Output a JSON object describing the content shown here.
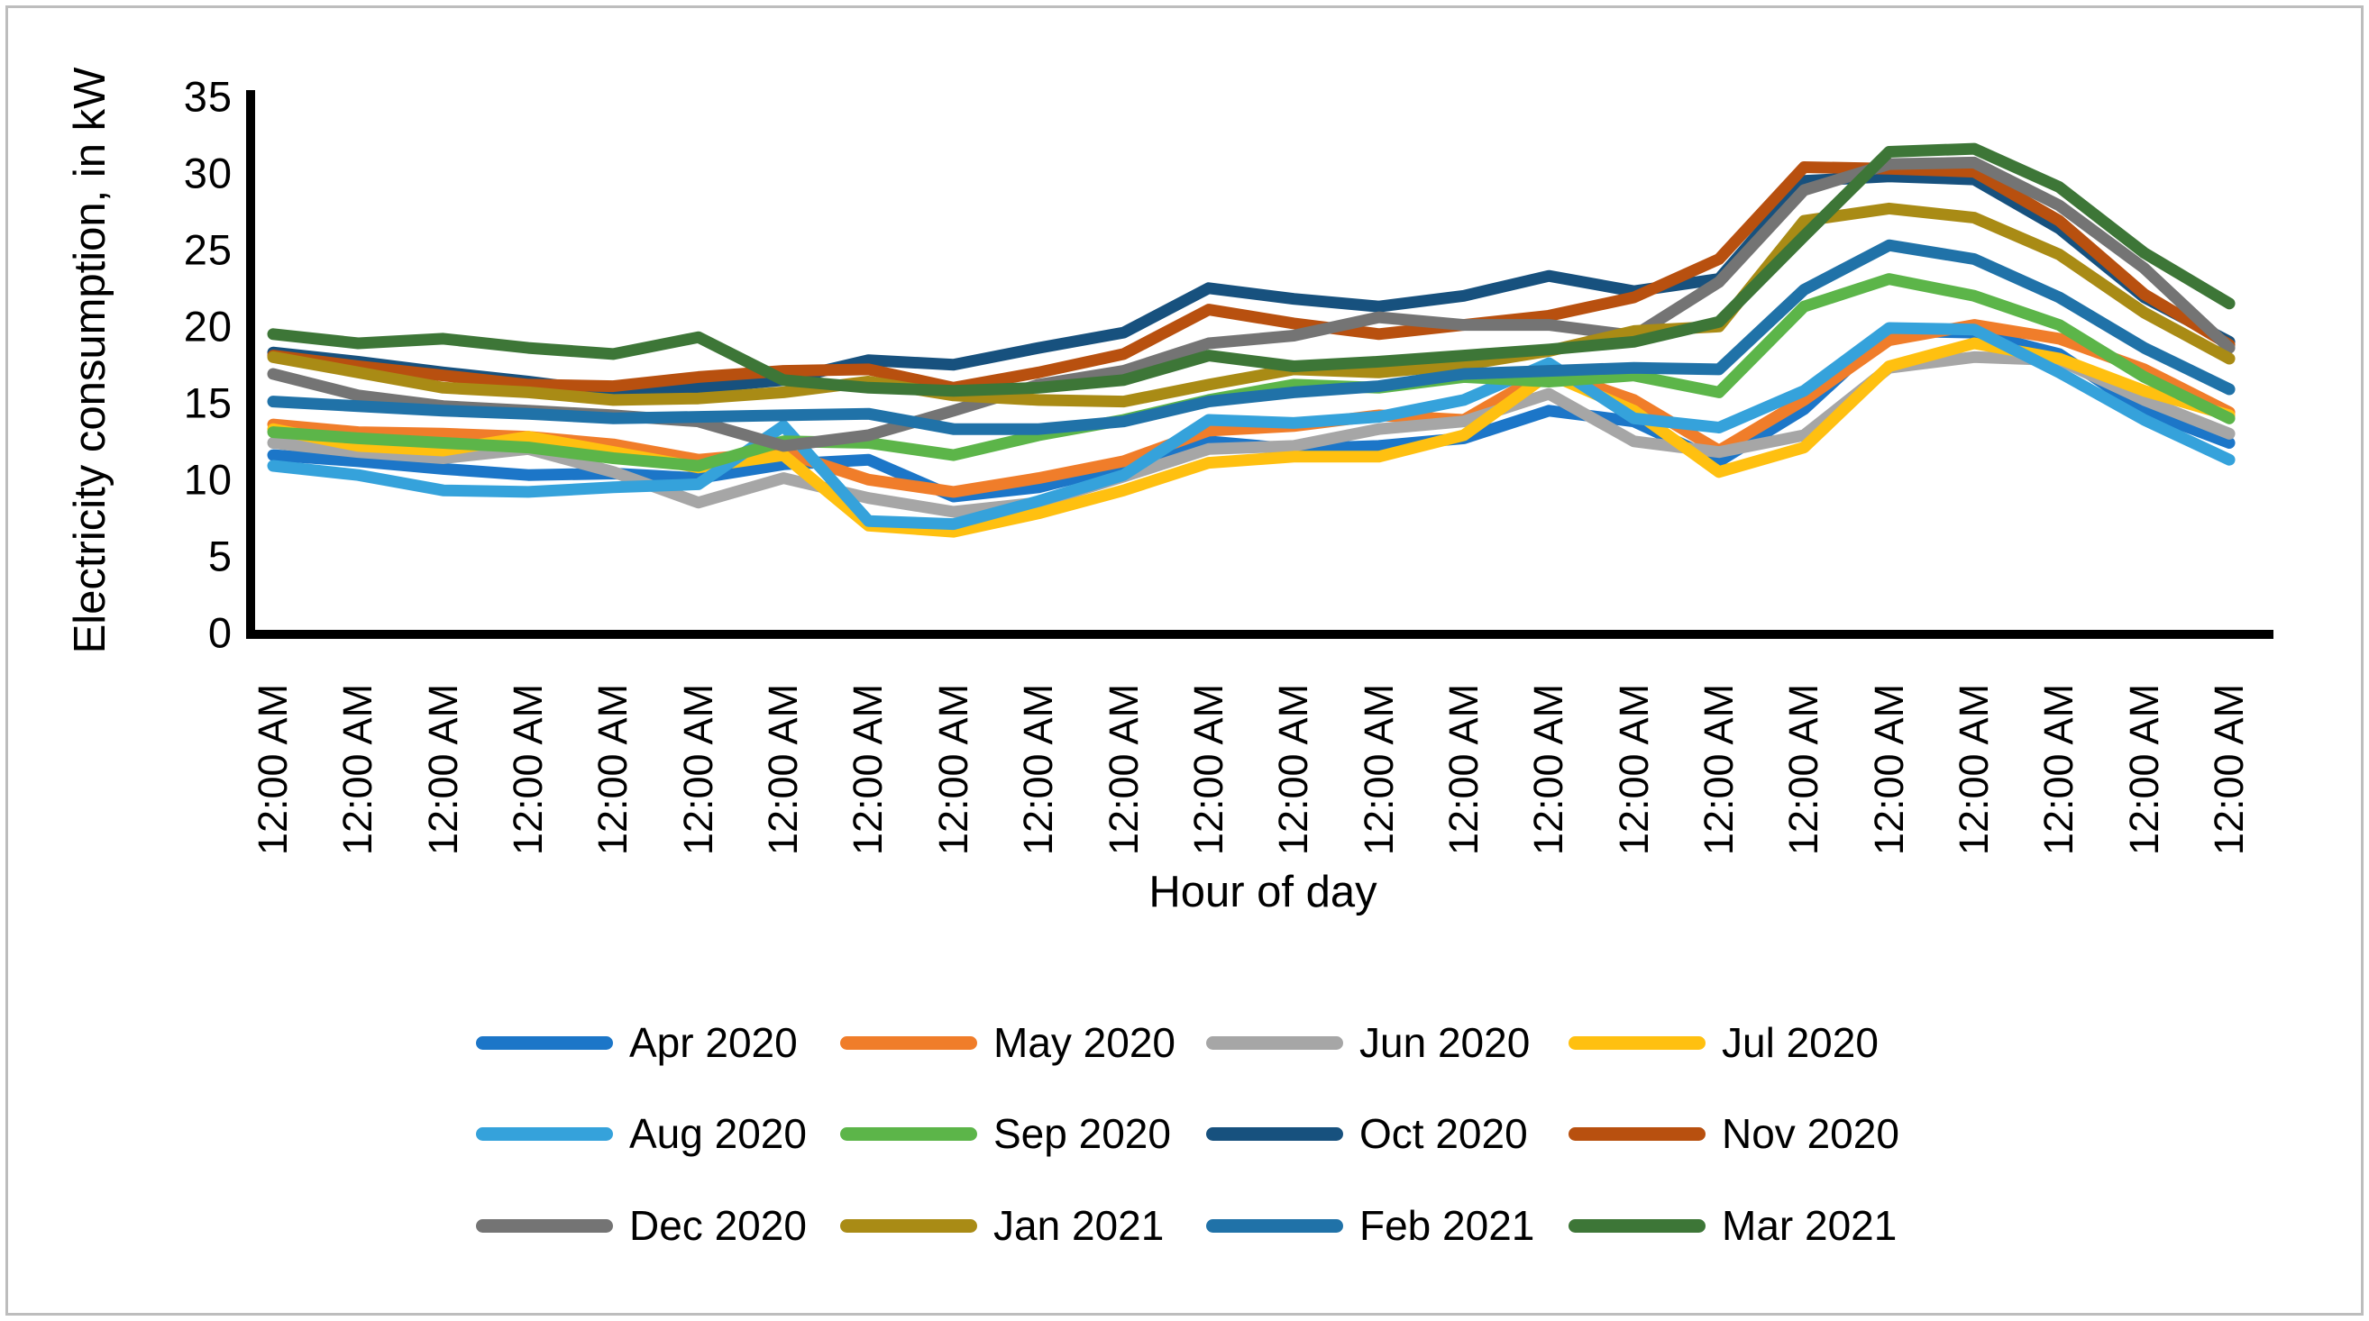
{
  "figure": {
    "x_title": "Hour of day",
    "y_title": "Electricity consumption, in kW"
  },
  "chart_data": {
    "type": "line",
    "title": "",
    "xlabel": "Hour of day",
    "ylabel": "Electricity consumption, in kW",
    "x_tick_label": "12:00 AM",
    "categories": [
      "12:00 AM",
      "12:00 AM",
      "12:00 AM",
      "12:00 AM",
      "12:00 AM",
      "12:00 AM",
      "12:00 AM",
      "12:00 AM",
      "12:00 AM",
      "12:00 AM",
      "12:00 AM",
      "12:00 AM",
      "12:00 AM",
      "12:00 AM",
      "12:00 AM",
      "12:00 AM",
      "12:00 AM",
      "12:00 AM",
      "12:00 AM",
      "12:00 AM",
      "12:00 AM",
      "12:00 AM",
      "12:00 AM",
      "12:00 AM"
    ],
    "yticks": [
      0,
      5,
      10,
      15,
      20,
      25,
      30,
      35
    ],
    "ylim": [
      0,
      35
    ],
    "grid": false,
    "legend_position": "bottom",
    "legend_columns": 4,
    "series": [
      {
        "name": "Apr 2020",
        "color": "#1c76c8",
        "values": [
          11.7,
          11.3,
          10.8,
          10.4,
          10.5,
          10.2,
          11.1,
          11.4,
          9.0,
          9.6,
          11.0,
          12.6,
          12.1,
          12.3,
          12.8,
          14.6,
          13.9,
          11.3,
          14.7,
          19.8,
          19.7,
          18.3,
          14.6,
          12.5
        ]
      },
      {
        "name": "May 2020",
        "color": "#f07d2a",
        "values": [
          13.7,
          13.2,
          13.1,
          12.9,
          12.4,
          11.4,
          11.9,
          10.1,
          9.3,
          10.2,
          11.3,
          13.3,
          13.6,
          14.3,
          14.0,
          17.2,
          15.3,
          12.0,
          15.3,
          19.2,
          20.2,
          19.3,
          17.3,
          14.5
        ]
      },
      {
        "name": "Jun 2020",
        "color": "#a6a6a6",
        "values": [
          12.5,
          11.9,
          11.5,
          12.1,
          10.6,
          8.6,
          10.2,
          8.9,
          8.0,
          8.6,
          10.3,
          12.1,
          12.3,
          13.4,
          13.9,
          15.7,
          12.6,
          11.9,
          13.0,
          17.4,
          18.1,
          17.9,
          15.3,
          13.1
        ]
      },
      {
        "name": "Jul 2020",
        "color": "#ffc010",
        "values": [
          13.4,
          12.3,
          12.0,
          12.9,
          11.9,
          10.9,
          11.7,
          7.1,
          6.7,
          7.9,
          9.4,
          11.2,
          11.6,
          11.6,
          13.0,
          17.0,
          14.6,
          10.6,
          12.2,
          17.5,
          19.0,
          18.0,
          15.9,
          14.3
        ]
      },
      {
        "name": "Aug 2020",
        "color": "#35a2db",
        "values": [
          11.0,
          10.4,
          9.4,
          9.3,
          9.6,
          9.8,
          13.6,
          7.4,
          7.2,
          8.7,
          10.4,
          14.0,
          13.8,
          14.2,
          15.3,
          17.7,
          14.1,
          13.5,
          15.9,
          20.0,
          19.9,
          17.1,
          14.0,
          11.4
        ]
      },
      {
        "name": "Sep 2020",
        "color": "#5cb549",
        "values": [
          13.2,
          12.8,
          12.5,
          12.2,
          11.5,
          11.0,
          12.6,
          12.5,
          11.7,
          13.0,
          14.0,
          15.3,
          16.3,
          16.1,
          16.8,
          16.5,
          16.9,
          15.8,
          21.4,
          23.2,
          22.1,
          20.2,
          16.8,
          14.1
        ]
      },
      {
        "name": "Oct 2020",
        "color": "#17517e",
        "values": [
          18.4,
          17.8,
          17.1,
          16.5,
          15.8,
          16.1,
          16.6,
          17.9,
          17.6,
          18.7,
          19.7,
          22.6,
          21.9,
          21.4,
          22.1,
          23.4,
          22.4,
          23.2,
          29.6,
          29.9,
          29.7,
          26.5,
          22.0,
          19.1
        ]
      },
      {
        "name": "Nov 2020",
        "color": "#b8500f",
        "values": [
          18.2,
          17.5,
          16.9,
          16.3,
          16.2,
          16.8,
          17.2,
          17.3,
          16.1,
          17.1,
          18.3,
          21.2,
          20.3,
          19.6,
          20.2,
          20.8,
          22.0,
          24.5,
          30.5,
          30.4,
          30.2,
          27.0,
          22.2,
          18.9
        ]
      },
      {
        "name": "Dec 2020",
        "color": "#747474",
        "values": [
          17.0,
          15.6,
          14.9,
          14.6,
          14.3,
          13.9,
          12.3,
          13.0,
          14.6,
          16.3,
          17.2,
          19.0,
          19.5,
          20.7,
          20.2,
          20.2,
          19.5,
          23.0,
          29.0,
          30.7,
          30.8,
          28.0,
          23.9,
          18.7
        ]
      },
      {
        "name": "Jan 2021",
        "color": "#a98b15",
        "values": [
          18.1,
          17.1,
          16.1,
          15.8,
          15.3,
          15.4,
          15.8,
          16.5,
          15.6,
          15.3,
          15.2,
          16.3,
          17.3,
          17.1,
          17.6,
          18.5,
          19.8,
          20.1,
          27.0,
          27.8,
          27.2,
          24.8,
          21.0,
          18.0
        ]
      },
      {
        "name": "Feb 2021",
        "color": "#2072a8",
        "values": [
          15.2,
          14.9,
          14.6,
          14.4,
          14.1,
          14.2,
          14.3,
          14.4,
          13.4,
          13.4,
          13.9,
          15.2,
          15.8,
          16.2,
          17.0,
          17.2,
          17.4,
          17.3,
          22.5,
          25.4,
          24.5,
          22.0,
          18.7,
          16.0
        ]
      },
      {
        "name": "Mar 2021",
        "color": "#3d7637",
        "values": [
          19.6,
          19.0,
          19.3,
          18.7,
          18.3,
          19.4,
          16.6,
          16.1,
          15.9,
          16.1,
          16.6,
          18.2,
          17.5,
          17.8,
          18.2,
          18.6,
          19.1,
          20.4,
          26.0,
          31.5,
          31.7,
          29.2,
          24.9,
          21.6
        ]
      }
    ],
    "axis_color": "#000000",
    "frame_border_color": "#bdbdbd"
  }
}
